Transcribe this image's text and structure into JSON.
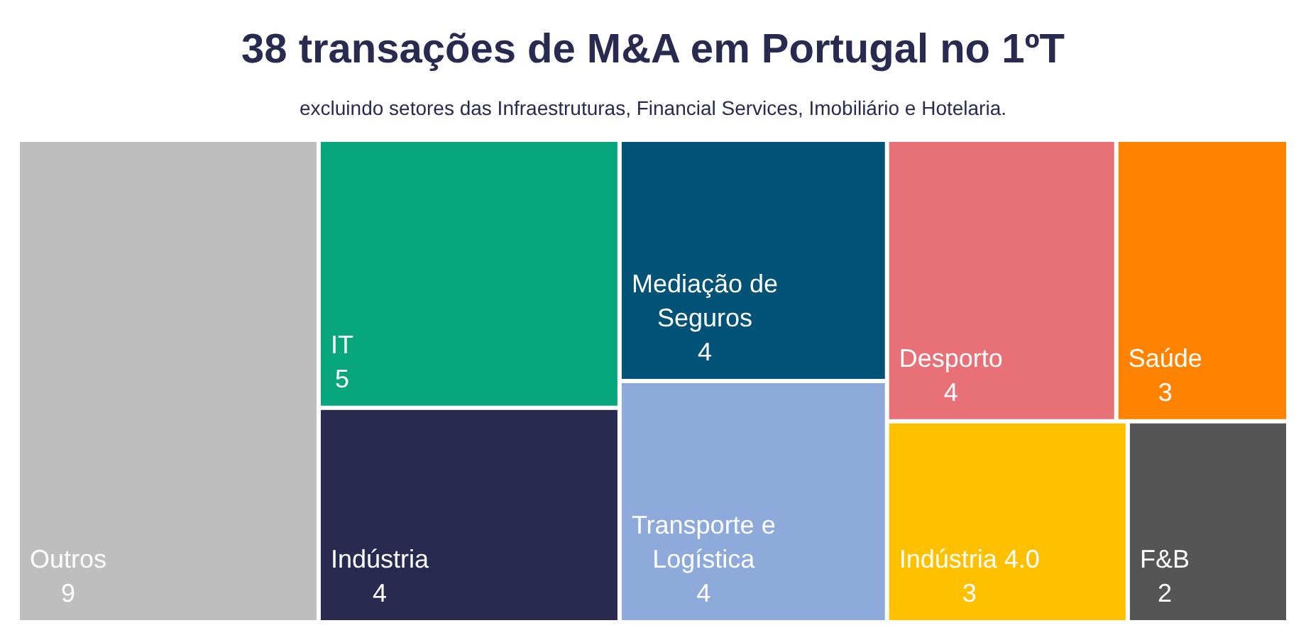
{
  "chart_data": {
    "type": "other",
    "title": "38 transações de M&A em Portugal no 1ºT",
    "subtitle": "excluindo setores das Infraestruturas, Financial Services, Imobiliário e Hotelaria.",
    "categories": [
      "Outros",
      "IT",
      "Indústria",
      "Mediação de Seguros",
      "Transporte e Logística",
      "Desporto",
      "Saúde",
      "Indústria 4.0",
      "F&B"
    ],
    "values": [
      9,
      5,
      4,
      4,
      4,
      4,
      3,
      3,
      2
    ],
    "colors": [
      "#bebebe",
      "#08a67c",
      "#282a4f",
      "#005377",
      "#8eaadb",
      "#e87077",
      "#ff8200",
      "#ffc000",
      "#555555"
    ],
    "data_labels": true
  }
}
